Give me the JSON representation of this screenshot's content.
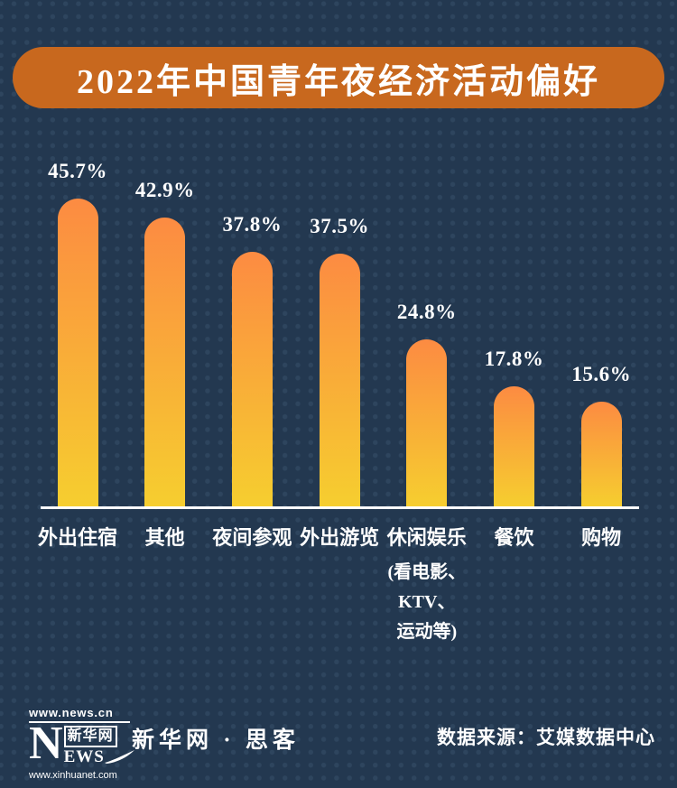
{
  "title": "2022年中国青年夜经济活动偏好",
  "colors": {
    "background": "#233850",
    "dot": "#2E455E",
    "banner": "#C8681E",
    "bar_top": "#FC8B42",
    "bar_bottom": "#F6CE2F",
    "axis": "#FFFFFF",
    "text": "#FFFFFF"
  },
  "chart_data": {
    "type": "bar",
    "title": "2022年中国青年夜经济活动偏好",
    "categories": [
      "外出住宿",
      "其他",
      "夜间参观",
      "外出游览",
      "休闲娱乐",
      "餐饮",
      "购物"
    ],
    "category_sublines": [
      [],
      [],
      [],
      [],
      [
        "(看电影、",
        "KTV、",
        "运动等)"
      ],
      [],
      []
    ],
    "values": [
      45.7,
      42.9,
      37.8,
      37.5,
      24.8,
      17.8,
      15.6
    ],
    "value_labels": [
      "45.7%",
      "42.9%",
      "37.8%",
      "37.5%",
      "24.8%",
      "17.8%",
      "15.6%"
    ],
    "unit": "%",
    "ylim": [
      0,
      50
    ],
    "grid": false,
    "legend": false,
    "baseline_axis": true,
    "bar_gradient": [
      "#FC8B42",
      "#F6CE2F"
    ]
  },
  "footer": {
    "logo": {
      "site_url": "www.news.cn",
      "letter_n": "N",
      "letters_rest": "EWS",
      "cn_name": "新华网",
      "domain_url": "www.xinhuanet.com"
    },
    "brand": "新华网 · 思客",
    "source": "数据来源：艾媒数据中心"
  }
}
